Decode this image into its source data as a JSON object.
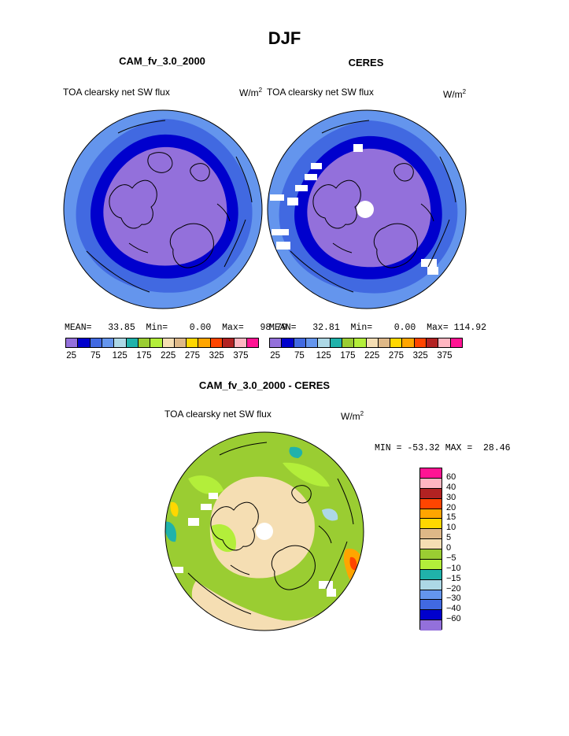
{
  "page": {
    "title": "DJF"
  },
  "panels": [
    {
      "title": "CAM_fv_3.0_2000",
      "variable": "TOA clearsky net SW flux",
      "units_base": "W/m",
      "units_exp": "2",
      "stats": "MEAN=   33.85  Min=    0.00  Max=   98.79"
    },
    {
      "title": "CERES",
      "variable": "TOA clearsky net SW flux",
      "units_base": "W/m",
      "units_exp": "2",
      "stats": "MEAN=   32.81  Min=    0.00  Max= 114.92"
    }
  ],
  "diff": {
    "title": "CAM_fv_3.0_2000 - CERES",
    "variable": "TOA clearsky net SW flux",
    "units_base": "W/m",
    "units_exp": "2",
    "stats": "MIN = -53.32 MAX =  28.46"
  },
  "colors": {
    "abs_scale": [
      "#9370db",
      "#0000cd",
      "#4169e1",
      "#6495ed",
      "#add8e6",
      "#20b2aa",
      "#9acd32",
      "#b3ee3a",
      "#f5deb3",
      "#deb887",
      "#ffd700",
      "#ffa500",
      "#ff4500",
      "#b22222",
      "#ffb6c1",
      "#ff1493"
    ],
    "diff_scale": [
      "#ff1493",
      "#ffb6c1",
      "#b22222",
      "#ff4500",
      "#ffa500",
      "#ffd700",
      "#deb887",
      "#f5deb3",
      "#9acd32",
      "#b3ee3a",
      "#20b2aa",
      "#add8e6",
      "#6495ed",
      "#4169e1",
      "#0000cd",
      "#9370db"
    ]
  },
  "chart_data": [
    {
      "type": "heatmap",
      "projection": "north-polar-stereographic",
      "title": "CAM_fv_3.0_2000",
      "colorbar_ticks": [
        "25",
        "75",
        "125",
        "175",
        "225",
        "275",
        "325",
        "375"
      ],
      "zones": [
        {
          "level": 25,
          "color": "#9370db"
        },
        {
          "level": 50,
          "color": "#0000cd"
        },
        {
          "level": 75,
          "color": "#4169e1"
        },
        {
          "level": 100,
          "color": "#6495ed"
        }
      ]
    },
    {
      "type": "heatmap",
      "projection": "north-polar-stereographic",
      "title": "CERES",
      "colorbar_ticks": [
        "25",
        "75",
        "125",
        "175",
        "225",
        "275",
        "325",
        "375"
      ],
      "zones": [
        {
          "level": 25,
          "color": "#9370db"
        },
        {
          "level": 50,
          "color": "#0000cd"
        },
        {
          "level": 75,
          "color": "#4169e1"
        },
        {
          "level": 100,
          "color": "#6495ed"
        }
      ]
    },
    {
      "type": "heatmap",
      "projection": "north-polar-stereographic",
      "title": "CAM_fv_3.0_2000 - CERES",
      "colorbar_ticks": [
        "60",
        "40",
        "30",
        "20",
        "15",
        "10",
        "5",
        "0",
        "−5",
        "−10",
        "−15",
        "−20",
        "−30",
        "−40",
        "−60"
      ]
    }
  ]
}
